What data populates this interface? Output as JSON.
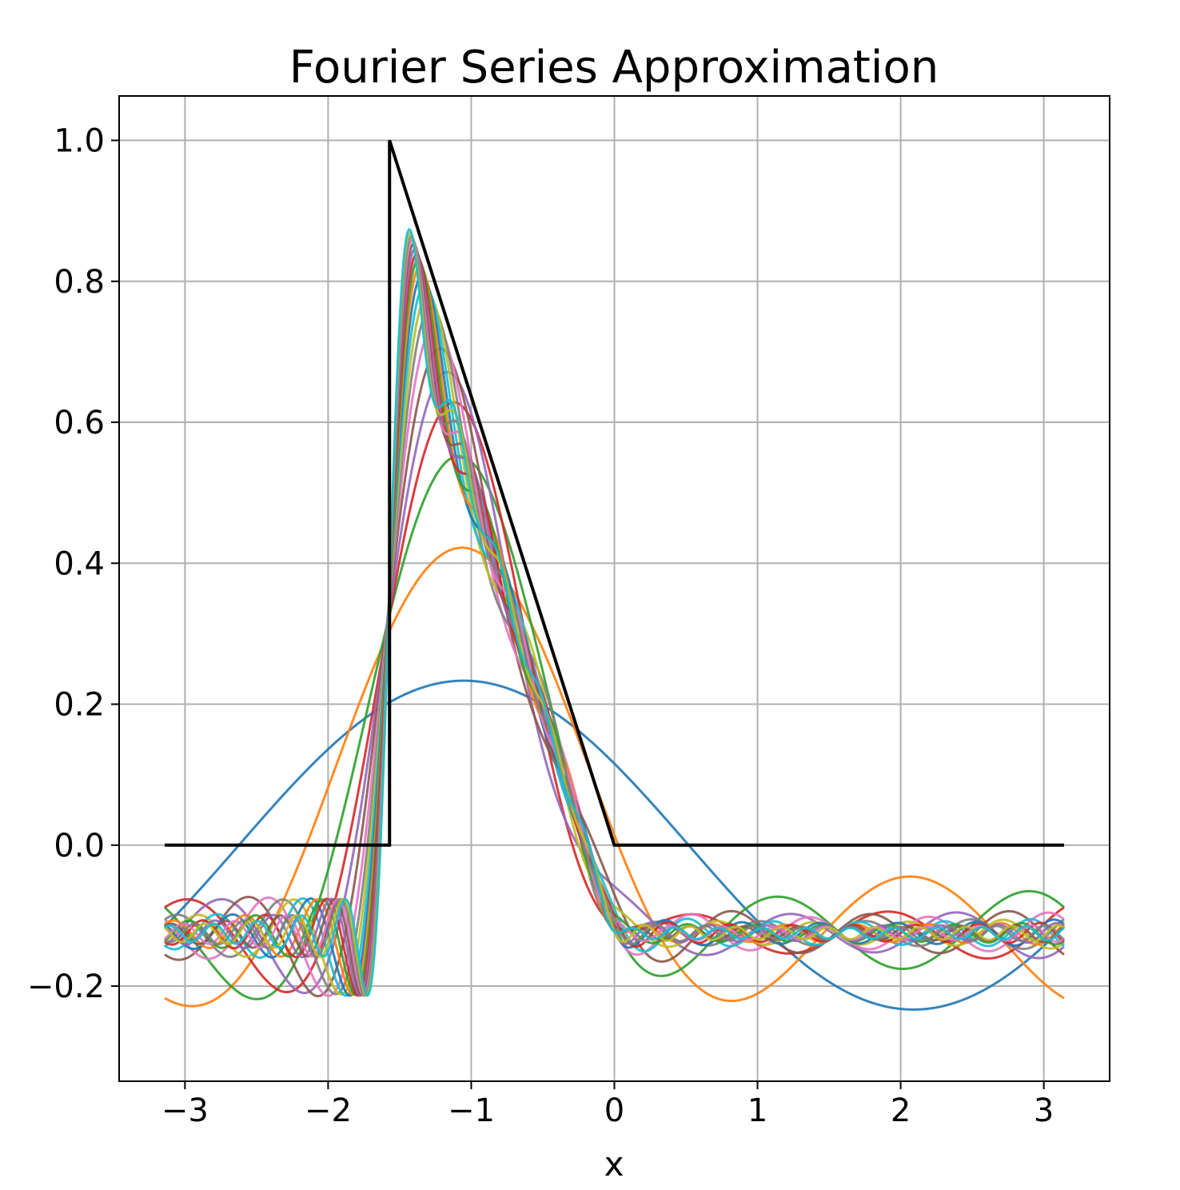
{
  "chart_data": {
    "type": "line",
    "title": "Fourier Series Approximation",
    "xlabel": "x",
    "ylabel": "",
    "xlim": [
      -3.46,
      3.46
    ],
    "ylim": [
      -0.335,
      1.063
    ],
    "grid": true,
    "legend": "none",
    "x_ticks": [
      -3,
      -2,
      -1,
      0,
      1,
      2,
      3
    ],
    "x_tick_labels": [
      "−3",
      "−2",
      "−1",
      "0",
      "1",
      "2",
      "3"
    ],
    "y_ticks": [
      -0.2,
      0.0,
      0.2,
      0.4,
      0.6,
      0.8,
      1.0
    ],
    "y_tick_labels": [
      "−0.2",
      "0.0",
      "0.2",
      "0.4",
      "0.6",
      "0.8",
      "1.0"
    ],
    "target_function": {
      "color": "#000000",
      "points": [
        [
          -3.1416,
          0
        ],
        [
          -1.5708,
          0
        ],
        [
          -1.5708,
          1
        ],
        [
          0,
          0
        ],
        [
          3.1416,
          0
        ]
      ]
    },
    "approximations": {
      "x_range": [
        -3.1416,
        3.1416
      ],
      "series": [
        {
          "terms": 1,
          "color": "#1f77b4"
        },
        {
          "terms": 2,
          "color": "#ff7f0e"
        },
        {
          "terms": 3,
          "color": "#2ca02c"
        },
        {
          "terms": 4,
          "color": "#d62728"
        },
        {
          "terms": 5,
          "color": "#9467bd"
        },
        {
          "terms": 6,
          "color": "#8c564b"
        },
        {
          "terms": 7,
          "color": "#e377c2"
        },
        {
          "terms": 8,
          "color": "#7f7f7f"
        },
        {
          "terms": 9,
          "color": "#bcbd22"
        },
        {
          "terms": 10,
          "color": "#17becf"
        },
        {
          "terms": 11,
          "color": "#1f77b4"
        },
        {
          "terms": 12,
          "color": "#ff7f0e"
        },
        {
          "terms": 13,
          "color": "#2ca02c"
        },
        {
          "terms": 14,
          "color": "#d62728"
        },
        {
          "terms": 15,
          "color": "#9467bd"
        },
        {
          "terms": 16,
          "color": "#8c564b"
        },
        {
          "terms": 17,
          "color": "#e377c2"
        },
        {
          "terms": 18,
          "color": "#7f7f7f"
        },
        {
          "terms": 19,
          "color": "#bcbd22"
        },
        {
          "terms": 20,
          "color": "#17becf"
        }
      ]
    }
  }
}
